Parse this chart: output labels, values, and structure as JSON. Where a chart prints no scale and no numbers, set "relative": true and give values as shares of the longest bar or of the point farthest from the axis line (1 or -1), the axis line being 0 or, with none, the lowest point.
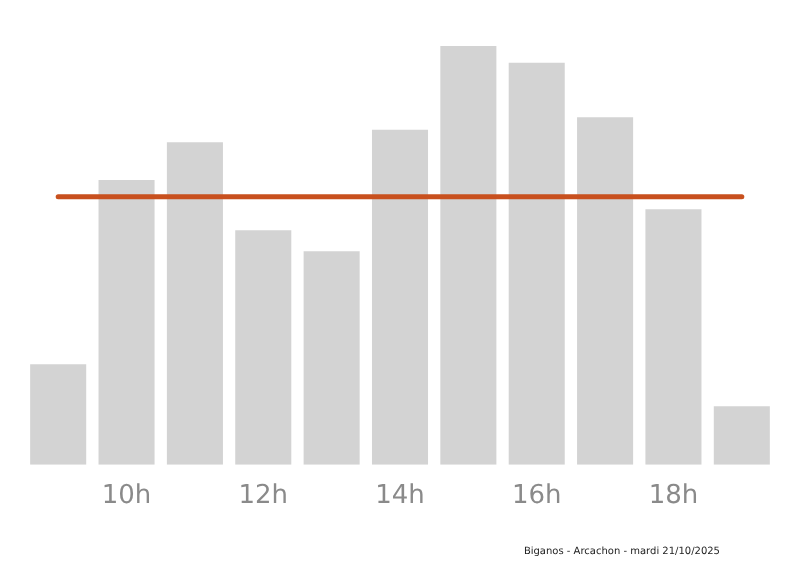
{
  "chart_data": {
    "type": "bar",
    "relative": true,
    "categories": [
      null,
      "10h",
      null,
      "12h",
      null,
      "14h",
      null,
      "16h",
      null,
      "18h",
      null
    ],
    "values": [
      0.24,
      0.68,
      0.77,
      0.56,
      0.51,
      0.8,
      1,
      0.96,
      0.83,
      0.61,
      0.14
    ],
    "color": "#d3d3d3",
    "ref_lines": [
      {
        "axis": "y",
        "value": 0.64,
        "color": "#c8501e"
      }
    ],
    "annotations": [
      "Biganos - Arcachon - mardi 21/10/2025"
    ],
    "grid": false,
    "legend": false
  }
}
